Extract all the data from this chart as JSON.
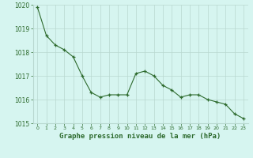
{
  "x": [
    0,
    1,
    2,
    3,
    4,
    5,
    6,
    7,
    8,
    9,
    10,
    11,
    12,
    13,
    14,
    15,
    16,
    17,
    18,
    19,
    20,
    21,
    22,
    23
  ],
  "y": [
    1019.9,
    1018.7,
    1018.3,
    1018.1,
    1017.8,
    1017.0,
    1016.3,
    1016.1,
    1016.2,
    1016.2,
    1016.2,
    1017.1,
    1017.2,
    1017.0,
    1016.6,
    1016.4,
    1016.1,
    1016.2,
    1016.2,
    1016.0,
    1015.9,
    1015.8,
    1015.4,
    1015.2
  ],
  "line_color": "#2d6a2d",
  "marker": "+",
  "marker_color": "#2d6a2d",
  "bg_color": "#d6f5f0",
  "grid_color": "#b8d8d0",
  "xlabel": "Graphe pression niveau de la mer (hPa)",
  "xlabel_color": "#2d6a2d",
  "tick_color": "#2d6a2d",
  "ylim": [
    1015.0,
    1020.0
  ],
  "xlim": [
    -0.5,
    23.5
  ],
  "yticks": [
    1015,
    1016,
    1017,
    1018,
    1019,
    1020
  ],
  "xticks": [
    0,
    1,
    2,
    3,
    4,
    5,
    6,
    7,
    8,
    9,
    10,
    11,
    12,
    13,
    14,
    15,
    16,
    17,
    18,
    19,
    20,
    21,
    22,
    23
  ],
  "xtick_labels": [
    "0",
    "1",
    "2",
    "3",
    "4",
    "5",
    "6",
    "7",
    "8",
    "9",
    "10",
    "11",
    "12",
    "13",
    "14",
    "15",
    "16",
    "17",
    "18",
    "19",
    "20",
    "21",
    "22",
    "23"
  ]
}
